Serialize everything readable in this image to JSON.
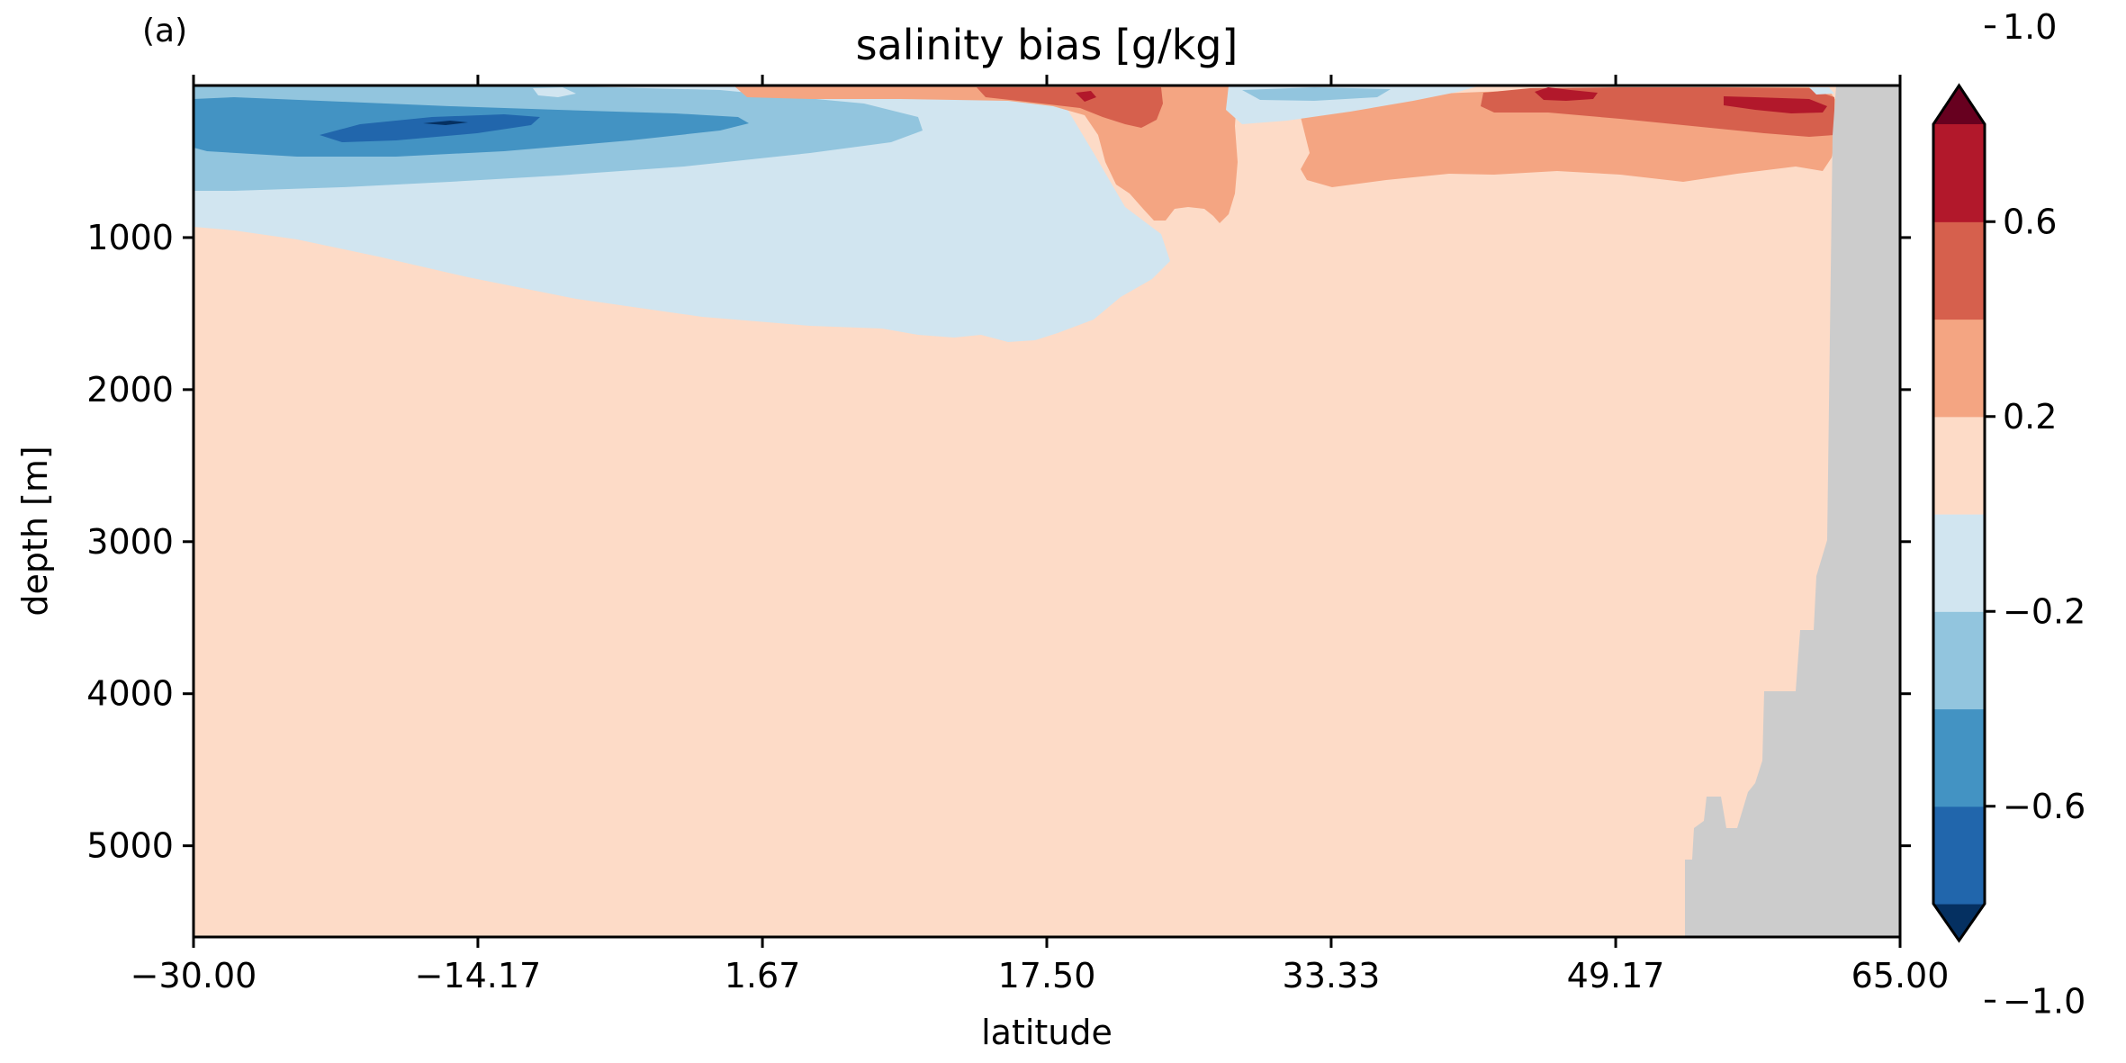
{
  "panel_label": "(a)",
  "chart_data": {
    "type": "heatmap",
    "title": "salinity bias [g/kg]",
    "xlabel": "latitude",
    "ylabel": "depth [m]",
    "xlim": [
      -30,
      65
    ],
    "ylim": [
      5600,
      0
    ],
    "y_inverted": true,
    "x_ticks": [
      -30,
      -14.17,
      1.67,
      17.5,
      33.33,
      49.17,
      65
    ],
    "x_tick_labels": [
      "−30.00",
      "−14.17",
      "1.67",
      "17.50",
      "33.33",
      "49.17",
      "65.00"
    ],
    "y_ticks": [
      1000,
      2000,
      3000,
      4000,
      5000
    ],
    "y_tick_labels": [
      "1000",
      "2000",
      "3000",
      "4000",
      "5000"
    ],
    "colorbar": {
      "levels": [
        -1.0,
        -0.8,
        -0.6,
        -0.4,
        -0.2,
        0.0,
        0.2,
        0.4,
        0.6,
        0.8,
        1.0
      ],
      "colors": [
        "#053061",
        "#2166ac",
        "#4393c3",
        "#92c5de",
        "#d1e5f0",
        "#fddbc7",
        "#f4a582",
        "#d6604d",
        "#b2182b",
        "#67001f"
      ],
      "extend": "both",
      "tick_values": [
        -1.0,
        -0.6,
        -0.2,
        0.2,
        0.6,
        1.0
      ],
      "tick_labels": [
        "−1.0",
        "−0.6",
        "−0.2",
        "0.2",
        "0.6",
        "1.0"
      ]
    },
    "land_color": "#cccccc",
    "regions": [
      {
        "name": "deep-background",
        "value": 0.1
      },
      {
        "name": "south-intermediate",
        "value": -0.1
      },
      {
        "name": "south-upper",
        "value": -0.3
      },
      {
        "name": "south-core",
        "value": -0.5
      },
      {
        "name": "south-peak",
        "value": -0.7
      },
      {
        "name": "south-extreme",
        "value": -0.9
      },
      {
        "name": "north-mid-surface",
        "value": 0.3
      },
      {
        "name": "north-mid-core",
        "value": 0.5
      },
      {
        "name": "north-mid-peak",
        "value": 0.7
      },
      {
        "name": "north-subpolar-surface",
        "value": 0.3
      },
      {
        "name": "north-subpolar-core",
        "value": 0.5
      },
      {
        "name": "north-subpolar-peak",
        "value": 0.7
      },
      {
        "name": "surface-fresh-patch",
        "value": -0.1
      },
      {
        "name": "surface-cool-patch",
        "value": -0.3
      }
    ]
  }
}
